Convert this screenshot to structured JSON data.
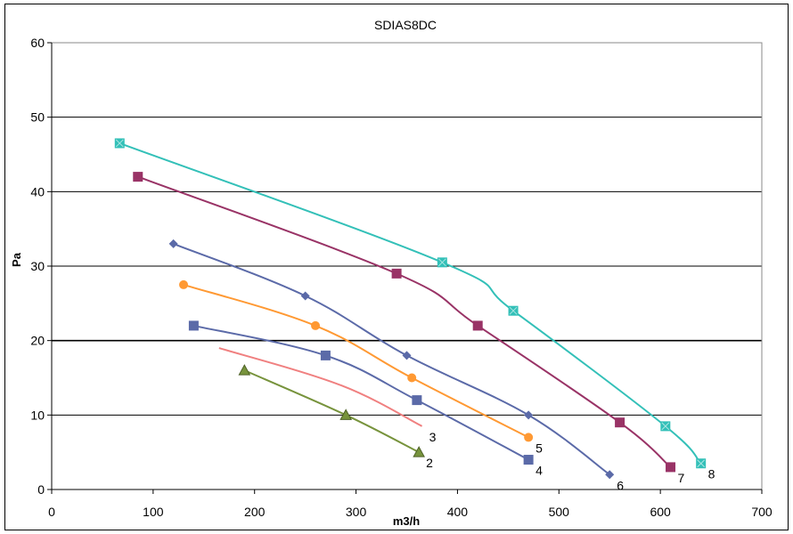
{
  "chart_data": {
    "type": "line",
    "title": "SDIAS8DC",
    "xlabel": "m3/h",
    "ylabel": "Pa",
    "xlim": [
      0,
      700
    ],
    "ylim": [
      0,
      60
    ],
    "xticks": [
      "0",
      "100",
      "200",
      "300",
      "400",
      "500",
      "600",
      "700"
    ],
    "yticks": [
      "0",
      "10",
      "20",
      "30",
      "40",
      "50",
      "60"
    ],
    "grid": "horizontal",
    "series": [
      {
        "name": "8",
        "color": "#33c0b8",
        "marker": "square-x",
        "x": [
          67,
          385,
          455,
          605,
          640
        ],
        "y": [
          46.5,
          30.5,
          24,
          8.5,
          3.5
        ]
      },
      {
        "name": "7",
        "color": "#993366",
        "marker": "square",
        "x": [
          85,
          340,
          420,
          560,
          610
        ],
        "y": [
          42,
          29,
          22,
          9,
          3
        ]
      },
      {
        "name": "6",
        "color": "#5b6aa8",
        "marker": "diamond",
        "x": [
          120,
          250,
          350,
          470,
          550
        ],
        "y": [
          33,
          26,
          18,
          10,
          2
        ]
      },
      {
        "name": "5",
        "color": "#ff9933",
        "marker": "circle",
        "x": [
          130,
          260,
          355,
          470
        ],
        "y": [
          27.5,
          22,
          15,
          7
        ]
      },
      {
        "name": "4",
        "color": "#5b6aa8",
        "marker": "square",
        "x": [
          140,
          270,
          360,
          470
        ],
        "y": [
          22,
          18,
          12,
          4
        ]
      },
      {
        "name": "3",
        "color": "#f08080",
        "marker": "none",
        "x": [
          165,
          285,
          365
        ],
        "y": [
          19,
          14,
          8.5
        ]
      },
      {
        "name": "2",
        "color": "#77933c",
        "marker": "triangle",
        "x": [
          190,
          290,
          362
        ],
        "y": [
          16,
          10,
          5
        ]
      }
    ]
  }
}
